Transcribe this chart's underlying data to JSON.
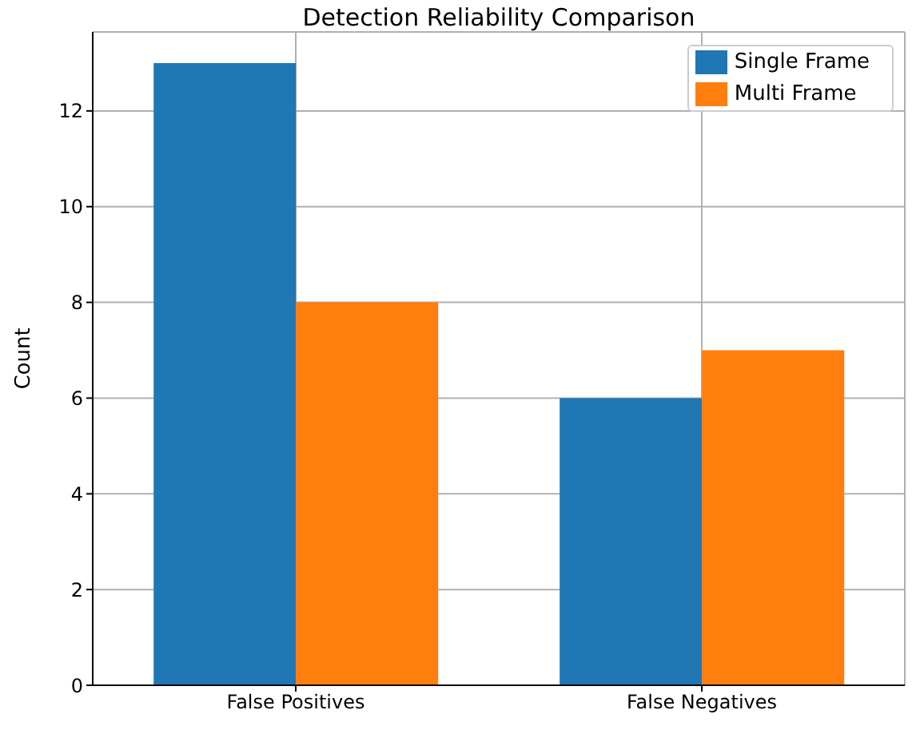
{
  "chart_data": {
    "type": "bar",
    "title": "Detection Reliability Comparison",
    "ylabel": "Count",
    "categories": [
      "False Positives",
      "False Negatives"
    ],
    "series": [
      {
        "name": "Single Frame",
        "color": "#1f77b4",
        "values": [
          13,
          6
        ]
      },
      {
        "name": "Multi Frame",
        "color": "#ff7f0e",
        "values": [
          8,
          7
        ]
      }
    ],
    "ylim": [
      0,
      13.65
    ],
    "yticks": [
      0,
      2,
      4,
      6,
      8,
      10,
      12
    ],
    "grid": true,
    "legend": "top right"
  }
}
